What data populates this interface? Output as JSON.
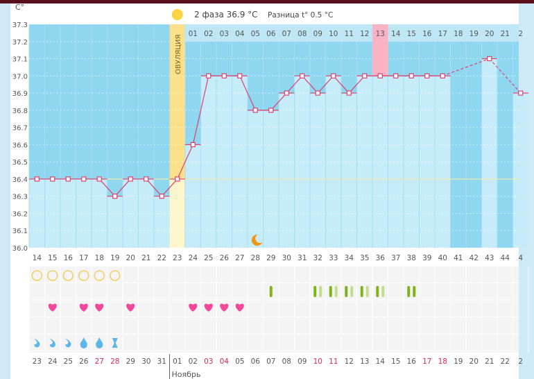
{
  "header": {
    "phase_label": "2 фаза 36.9 °C",
    "diff_label": "Разница t° 0.5 °C",
    "sun_icon": "sun-icon"
  },
  "colors": {
    "dark_bg": "#8fd6f0",
    "bar_fill": "#c6ecfa",
    "line": "#d9416a",
    "ovulation": "#fbe08a",
    "highlight": "#f9b3c4",
    "weekend": "#e0285a",
    "green_dark": "#7fb21d",
    "green_light": "#c2dc8c",
    "heart": "#f0489a",
    "drop": "#5fb6e6",
    "circle": "#f0d060"
  },
  "chart_data": {
    "type": "line",
    "title": "",
    "ylabel": "C°",
    "ylim": [
      36.0,
      37.3
    ],
    "yticks": [
      "37.3",
      "37.2",
      "37.1",
      "37.0",
      "36.9",
      "36.8",
      "36.7",
      "36.6",
      "36.5",
      "36.4",
      "36.3",
      "36.2",
      "36.1",
      "36.0"
    ],
    "cycle_days": [
      "14",
      "15",
      "16",
      "17",
      "18",
      "19",
      "20",
      "21",
      "22",
      "23",
      "24",
      "25",
      "26",
      "27",
      "28",
      "29",
      "30",
      "31",
      "32",
      "33",
      "34",
      "35",
      "36",
      "37",
      "38",
      "39",
      "40",
      "41",
      "42",
      "43",
      "44",
      "4"
    ],
    "temperatures": [
      36.4,
      36.4,
      36.4,
      36.4,
      36.4,
      36.3,
      36.4,
      36.4,
      36.3,
      36.4,
      36.6,
      37.0,
      37.0,
      37.0,
      36.8,
      36.8,
      36.9,
      37.0,
      36.9,
      37.0,
      36.9,
      37.0,
      37.0,
      37.0,
      37.0,
      37.0,
      37.0,
      null,
      null,
      37.1,
      null,
      36.9
    ],
    "coverline": 36.4,
    "ovulation_day": "23",
    "ovulation_label": "ОВУЛЯЦИЯ",
    "phase2_days": [
      "01",
      "02",
      "03",
      "04",
      "05",
      "06",
      "07",
      "08",
      "09",
      "10",
      "11",
      "12",
      "13",
      "14",
      "15",
      "16",
      "17",
      "18",
      "19",
      "20",
      "21",
      "2"
    ],
    "highlighted_phase2_day": "13",
    "moon_day": "28",
    "dates": [
      "23",
      "24",
      "25",
      "26",
      "27",
      "28",
      "29",
      "30",
      "31",
      "01",
      "02",
      "03",
      "04",
      "05",
      "06",
      "07",
      "08",
      "09",
      "10",
      "11",
      "12",
      "13",
      "14",
      "15",
      "16",
      "17",
      "18",
      "19",
      "20",
      "21",
      "22",
      "2"
    ],
    "weekend_dates_idx": [
      4,
      5,
      11,
      12,
      18,
      19,
      25,
      26
    ],
    "month_label": "Ноябрь",
    "month_start_idx": 9,
    "circles_days": [
      0,
      1,
      2,
      3,
      4,
      5
    ],
    "green_marks": [
      [
        15,
        "d"
      ],
      [
        18,
        "dl"
      ],
      [
        19,
        "dl"
      ],
      [
        20,
        "dl"
      ],
      [
        21,
        "dl"
      ],
      [
        22,
        "dl"
      ],
      [
        24,
        "dd"
      ]
    ],
    "hearts_days": [
      1,
      3,
      4,
      6,
      10,
      11,
      12,
      13
    ],
    "drops": [
      [
        0,
        "small"
      ],
      [
        1,
        "small"
      ],
      [
        2,
        "small"
      ],
      [
        3,
        "full"
      ],
      [
        4,
        "full"
      ],
      [
        5,
        "hourglass"
      ]
    ]
  }
}
